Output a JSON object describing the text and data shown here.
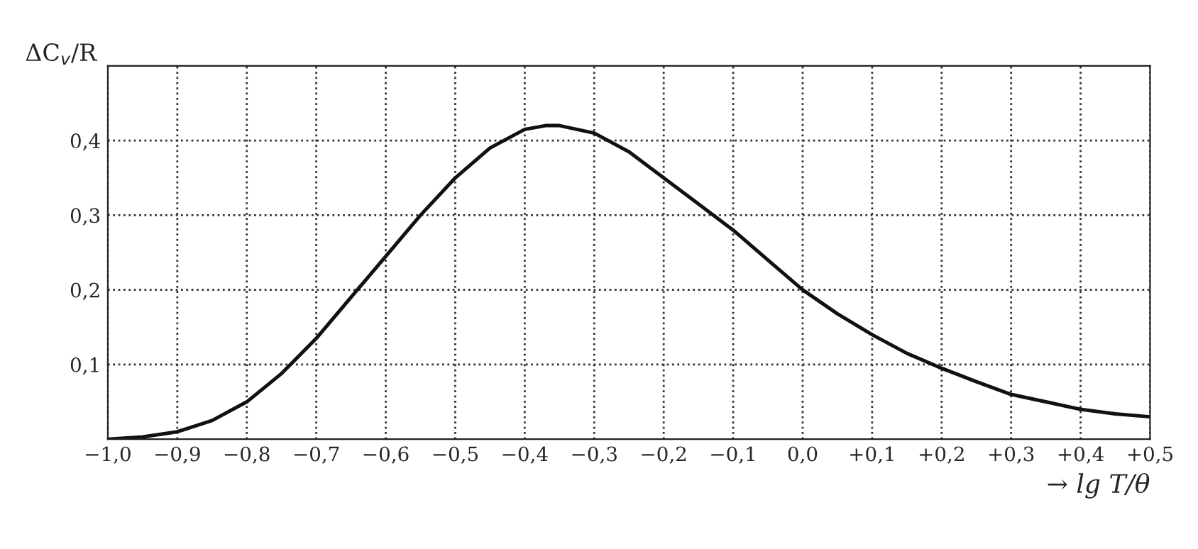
{
  "chart_data": {
    "type": "line",
    "xlabel": "→ lg T/θ",
    "ylabel": "ΔC$_{v}$/R",
    "x": [
      -1.0,
      -0.95,
      -0.9,
      -0.85,
      -0.8,
      -0.75,
      -0.7,
      -0.65,
      -0.6,
      -0.55,
      -0.5,
      -0.45,
      -0.4,
      -0.37,
      -0.35,
      -0.3,
      -0.25,
      -0.2,
      -0.15,
      -0.1,
      -0.05,
      0.0,
      0.05,
      0.1,
      0.15,
      0.2,
      0.25,
      0.3,
      0.35,
      0.4,
      0.45,
      0.5
    ],
    "series": [
      {
        "color": "#111111",
        "values": [
          0.0,
          0.003,
          0.01,
          0.025,
          0.05,
          0.088,
          0.135,
          0.19,
          0.245,
          0.3,
          0.35,
          0.39,
          0.415,
          0.42,
          0.42,
          0.41,
          0.385,
          0.35,
          0.315,
          0.28,
          0.24,
          0.2,
          0.168,
          0.14,
          0.115,
          0.095,
          0.077,
          0.06,
          0.05,
          0.04,
          0.034,
          0.03
        ]
      }
    ],
    "xlim": [
      -1.0,
      0.5
    ],
    "ylim": [
      0,
      0.5
    ],
    "xticks": [
      {
        "value": -1.0,
        "label": "−1,0"
      },
      {
        "value": -0.9,
        "label": "−0,9"
      },
      {
        "value": -0.8,
        "label": "−0,8"
      },
      {
        "value": -0.7,
        "label": "−0,7"
      },
      {
        "value": -0.6,
        "label": "−0,6"
      },
      {
        "value": -0.5,
        "label": "−0,5"
      },
      {
        "value": -0.4,
        "label": "−0,4"
      },
      {
        "value": -0.3,
        "label": "−0,3"
      },
      {
        "value": -0.2,
        "label": "−0,2"
      },
      {
        "value": -0.1,
        "label": "−0,1"
      },
      {
        "value": 0.0,
        "label": "0,0"
      },
      {
        "value": 0.1,
        "label": "+0,1"
      },
      {
        "value": 0.2,
        "label": "+0,2"
      },
      {
        "value": 0.3,
        "label": "+0,3"
      },
      {
        "value": 0.4,
        "label": "+0,4"
      },
      {
        "value": 0.5,
        "label": "+0,5"
      }
    ],
    "yticks": [
      {
        "value": 0.1,
        "label": "0,1"
      },
      {
        "value": 0.2,
        "label": "0,2"
      },
      {
        "value": 0.3,
        "label": "0,3"
      },
      {
        "value": 0.4,
        "label": "0,4"
      }
    ],
    "grid": true,
    "marker": "none",
    "line_style": "solid",
    "legend": false
  }
}
